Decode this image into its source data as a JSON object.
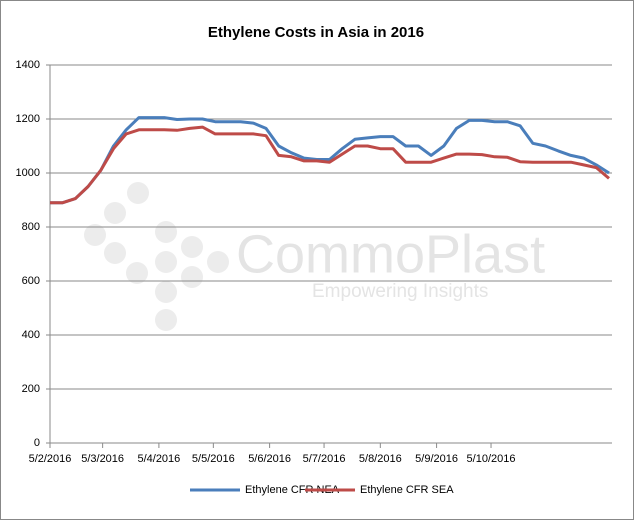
{
  "chart_data": {
    "type": "line",
    "title": "Ethylene Costs in Asia in 2016",
    "watermark": "CommoPlast",
    "watermark_tagline": "Empowering Insights",
    "x": [
      "2016-02-05",
      "2016-02-12",
      "2016-02-19",
      "2016-02-26",
      "2016-03-04",
      "2016-03-11",
      "2016-03-18",
      "2016-03-25",
      "2016-04-01",
      "2016-04-08",
      "2016-04-15",
      "2016-04-22",
      "2016-04-29",
      "2016-05-06",
      "2016-05-13",
      "2016-05-20",
      "2016-05-27",
      "2016-06-03",
      "2016-06-10",
      "2016-06-17",
      "2016-06-24",
      "2016-07-01",
      "2016-07-08",
      "2016-07-15",
      "2016-07-22",
      "2016-07-29",
      "2016-08-05",
      "2016-08-12",
      "2016-08-19",
      "2016-08-26",
      "2016-09-02",
      "2016-09-09",
      "2016-09-16",
      "2016-09-23",
      "2016-09-30",
      "2016-10-07",
      "2016-10-14",
      "2016-10-21",
      "2016-10-28",
      "2016-11-04",
      "2016-11-11",
      "2016-11-18",
      "2016-11-25",
      "2016-12-02",
      "2016-12-09"
    ],
    "series": [
      {
        "name": "Ethylene CFR NEA",
        "color": "#4a7ebb",
        "values": [
          890,
          890,
          905,
          950,
          1010,
          1100,
          1160,
          1205,
          1205,
          1205,
          1198,
          1200,
          1200,
          1190,
          1190,
          1190,
          1185,
          1165,
          1100,
          1075,
          1055,
          1050,
          1050,
          1090,
          1125,
          1130,
          1135,
          1135,
          1100,
          1100,
          1065,
          1100,
          1165,
          1195,
          1195,
          1190,
          1190,
          1175,
          1110,
          1100,
          1082,
          1065,
          1055,
          1030,
          1000
        ]
      },
      {
        "name": "Ethylene CFR SEA",
        "color": "#be4b48",
        "values": [
          890,
          890,
          905,
          950,
          1010,
          1090,
          1145,
          1160,
          1160,
          1160,
          1158,
          1165,
          1170,
          1145,
          1145,
          1145,
          1145,
          1138,
          1065,
          1060,
          1045,
          1045,
          1040,
          1070,
          1100,
          1100,
          1090,
          1090,
          1040,
          1040,
          1040,
          1055,
          1070,
          1070,
          1068,
          1060,
          1058,
          1042,
          1040,
          1040,
          1040,
          1040,
          1030,
          1020,
          980
        ]
      }
    ],
    "xlim": [
      "2016-02-05",
      "2016-12-09"
    ],
    "xticks": [
      {
        "value": "2016-02-05",
        "label": "5/2/2016"
      },
      {
        "value": "2016-03-05",
        "label": "5/3/2016"
      },
      {
        "value": "2016-04-05",
        "label": "5/4/2016"
      },
      {
        "value": "2016-05-05",
        "label": "5/5/2016"
      },
      {
        "value": "2016-06-05",
        "label": "5/6/2016"
      },
      {
        "value": "2016-07-05",
        "label": "5/7/2016"
      },
      {
        "value": "2016-08-05",
        "label": "5/8/2016"
      },
      {
        "value": "2016-09-05",
        "label": "5/9/2016"
      },
      {
        "value": "2016-10-05",
        "label": "5/10/2016"
      }
    ],
    "ylim": [
      0,
      1400
    ],
    "yticks": [
      0,
      200,
      400,
      600,
      800,
      1000,
      1200,
      1400
    ],
    "grid": true,
    "legend": "bottom"
  }
}
